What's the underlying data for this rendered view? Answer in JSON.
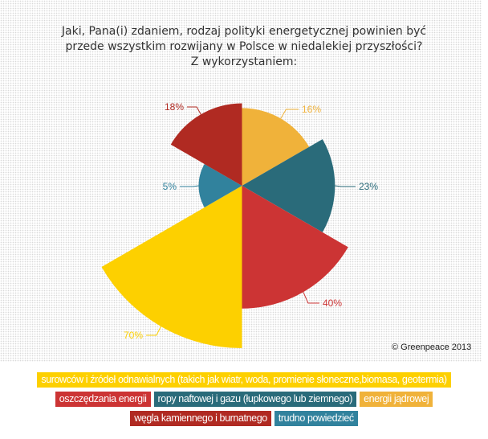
{
  "title_lines": [
    "Jaki, Pana(i) zdaniem, rodzaj polityki energetycznej powinien być",
    "przede wszystkim rozwijany w Polsce w niedalekiej przyszłości?",
    "Z wykorzystaniem:"
  ],
  "copyright": "© Greenpeace 2013",
  "chart_data": {
    "type": "polar-area",
    "title": "Jaki, Pana(i) zdaniem, rodzaj polityki energetycznej powinien być przede wszystkim rozwijany w Polsce w niedalekiej przyszłości? Z wykorzystaniem:",
    "categories": [
      "energii jądrowej",
      "ropy naftowej i gazu (łupkowego lub ziemnego)",
      "oszczędzania energii",
      "surowców i źródeł odnawialnych (takich jak wiatr, woda, promienie słoneczne,biomasa, geotermia)",
      "trudno powiedzieć",
      "węgla kamiennego i burnatnego"
    ],
    "values": [
      16,
      23,
      40,
      70,
      5,
      18
    ],
    "labels": [
      "16%",
      "23%",
      "40%",
      "70%",
      "5%",
      "18%"
    ],
    "colors": [
      "#f0b23a",
      "#2a6b7a",
      "#cc3434",
      "#fdd000",
      "#31829d",
      "#b02a22"
    ],
    "legend_placement": "bottom"
  },
  "legend_rows": [
    [
      {
        "label": "surowców i źródeł odnawialnych (takich jak wiatr, woda, promienie słoneczne,biomasa, geotermia)",
        "color": "#fdd000"
      }
    ],
    [
      {
        "label": "oszczędzania energii",
        "color": "#cc3434"
      },
      {
        "label": "ropy naftowej i gazu (łupkowego lub ziemnego)",
        "color": "#2a6b7a"
      },
      {
        "label": "energii jądrowej",
        "color": "#f0b23a"
      }
    ],
    [
      {
        "label": "węgla kamiennego i burnatnego",
        "color": "#b02a22"
      },
      {
        "label": "trudno powiedzieć",
        "color": "#31829d"
      }
    ]
  ]
}
